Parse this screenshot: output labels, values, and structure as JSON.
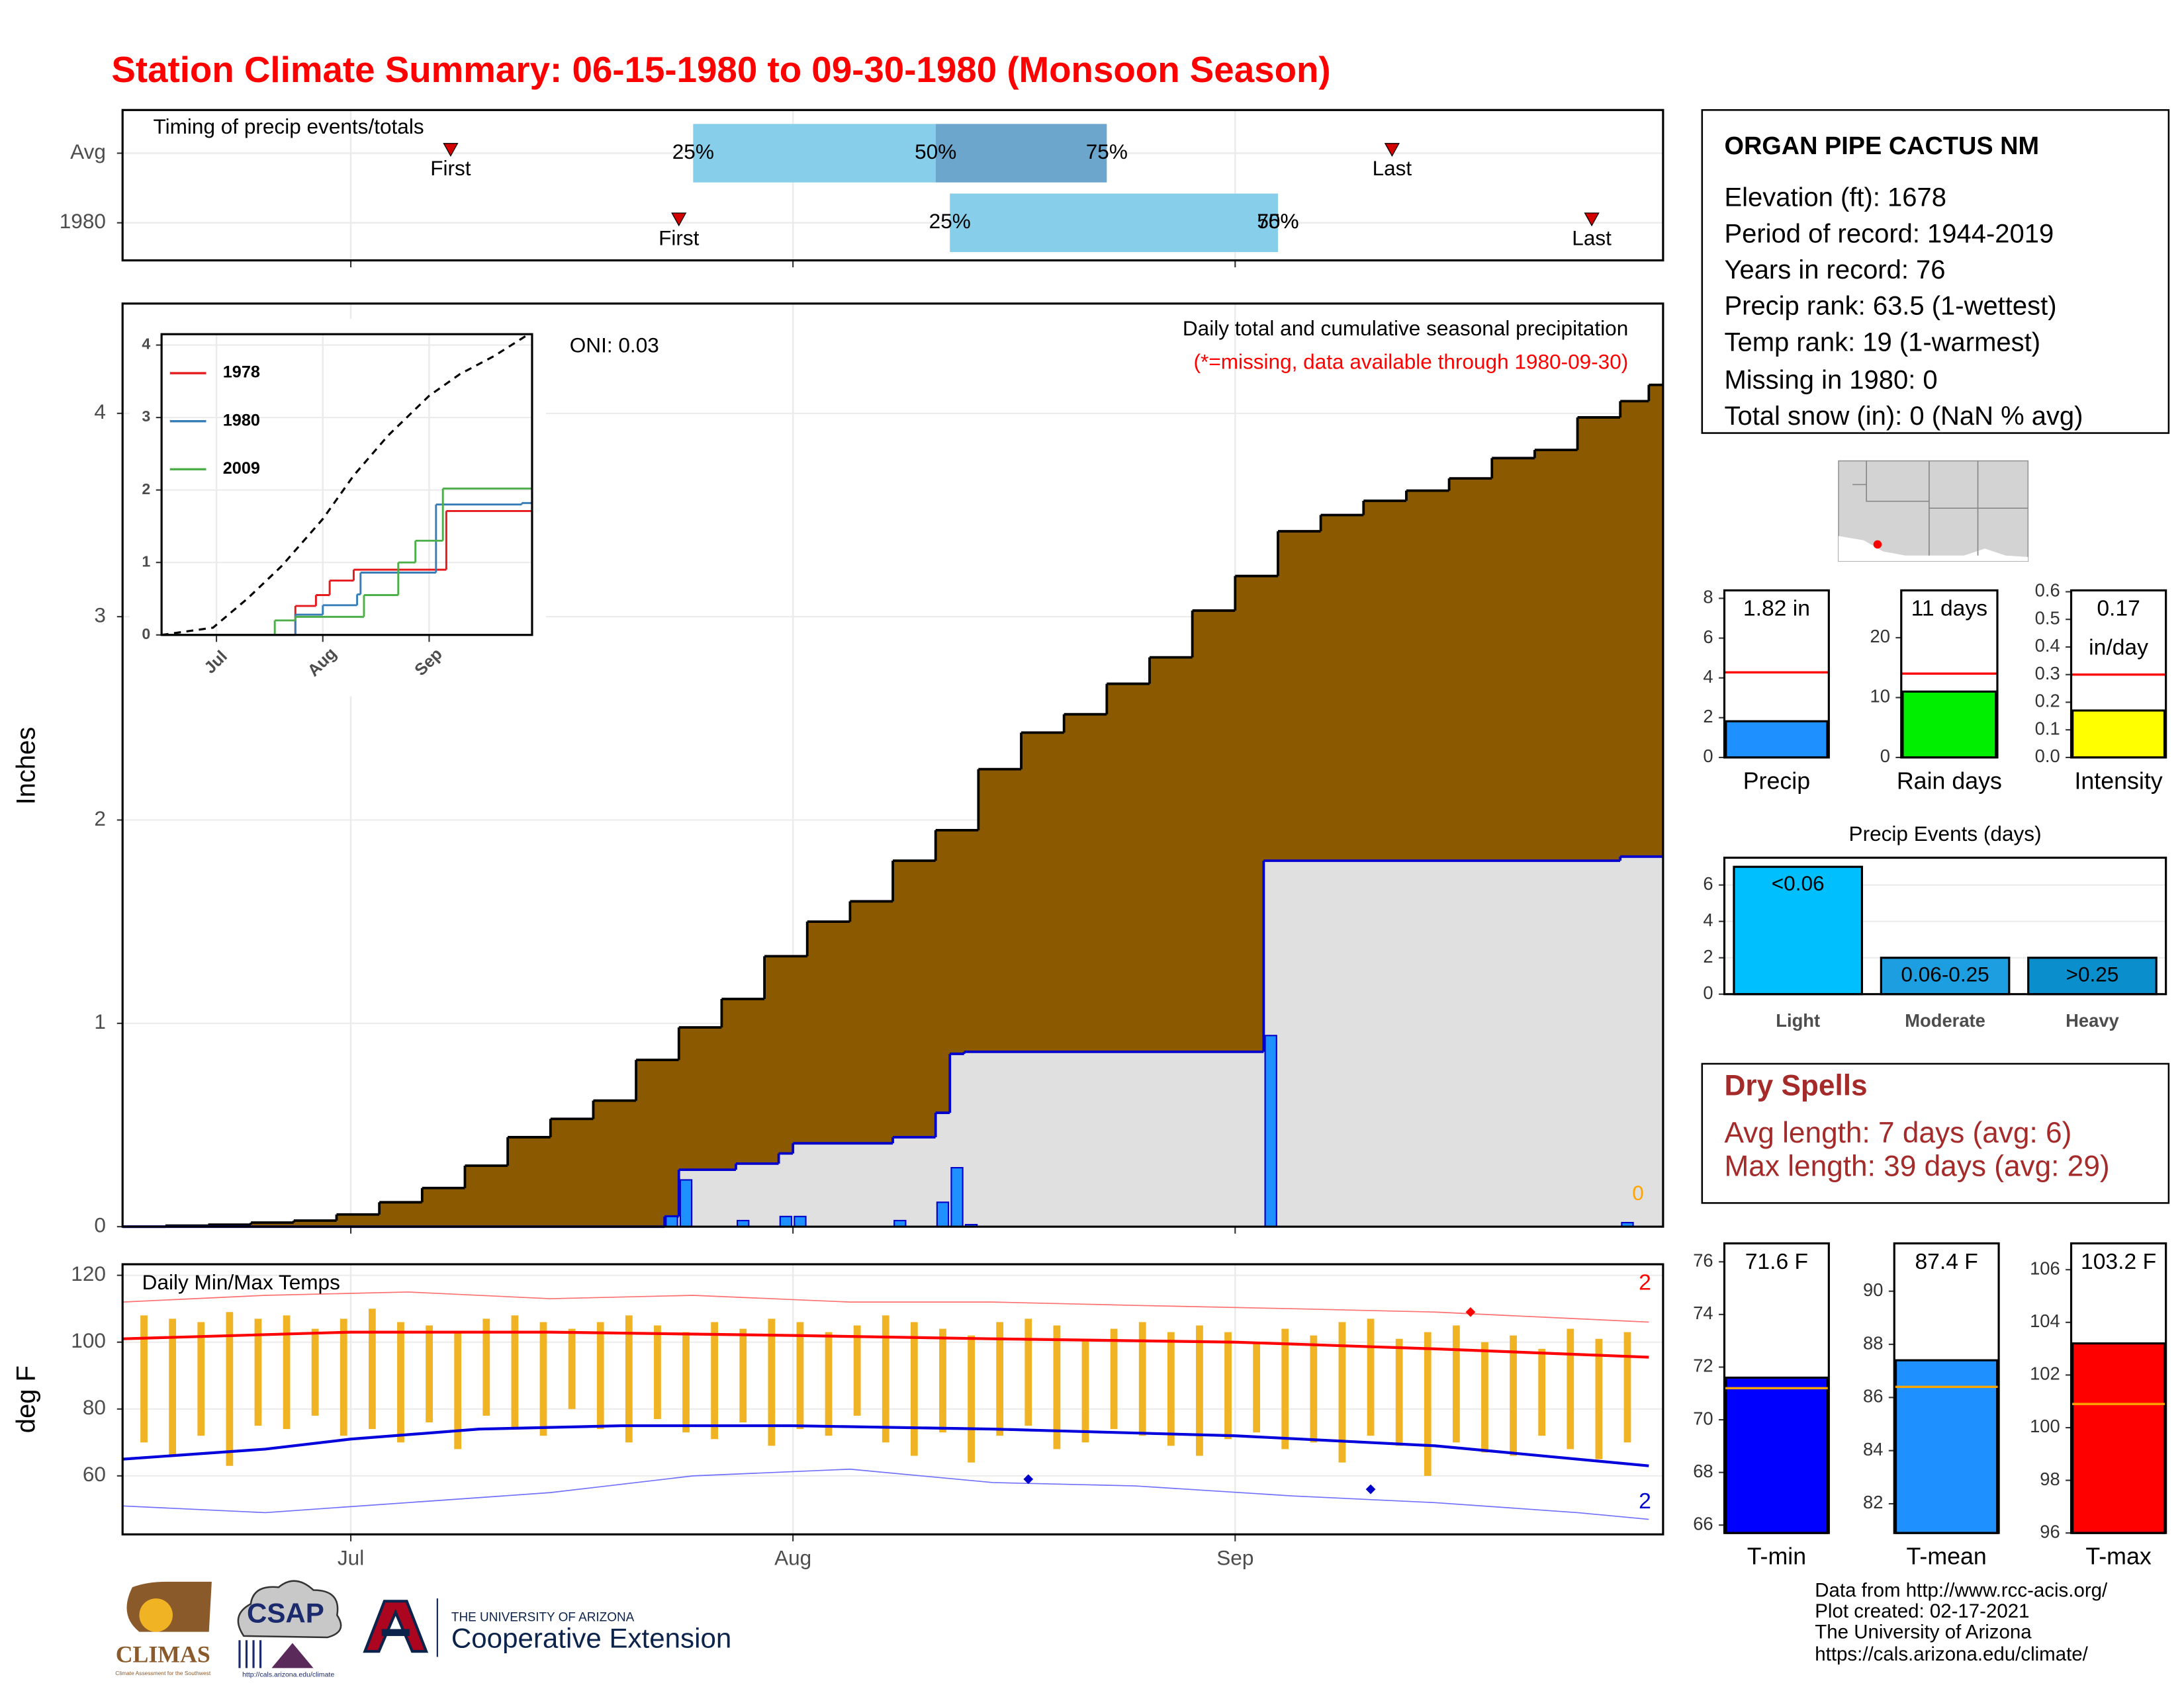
{
  "title": "Station Climate Summary: 06-15-1980 to 09-30-1980 (Monsoon Season)",
  "chart_data": [
    {
      "type": "timing",
      "title": "Timing of precip events/totals",
      "xlim": [
        "06-15",
        "10-01"
      ],
      "xticks": [
        "07-01",
        "08-01",
        "09-01"
      ],
      "grid": true,
      "labels": {
        "first": "First",
        "last": "Last",
        "q25": "25%",
        "q50": "50%",
        "q75": "75%"
      },
      "colors": {
        "q25": "#87ceeb",
        "q50": "#6ca6cd",
        "marker": "#d40000"
      },
      "rows": [
        {
          "name": "Avg",
          "first": "07-08",
          "q25": "07-25",
          "q50": "08-11",
          "q75": "08-23",
          "last": "09-12"
        },
        {
          "name": "1980",
          "first": "07-24",
          "q25": "08-12",
          "q50": "09-04",
          "q75": "09-04",
          "last": "09-26"
        }
      ]
    },
    {
      "type": "area",
      "ylabel": "Inches",
      "xlim": [
        "06-15",
        "10-01"
      ],
      "xticks": [
        "07-01",
        "08-01",
        "09-01"
      ],
      "ylim": [
        0,
        4.54
      ],
      "yticks": [
        0,
        1,
        2,
        3,
        4
      ],
      "grid": true,
      "annotations": {
        "oni": "ONI: 0.03",
        "subtitle": "Daily total and cumulative seasonal precipitation",
        "note": "(*=missing, data available through 1980-09-30)"
      },
      "missing_days": 0,
      "series": [
        {
          "kind": "step",
          "color": "#8b5a00",
          "line_color": "#000000",
          "x": [
            "06-15",
            "06-18",
            "06-21",
            "06-24",
            "06-27",
            "06-30",
            "07-03",
            "07-06",
            "07-09",
            "07-12",
            "07-15",
            "07-18",
            "07-21",
            "07-24",
            "07-27",
            "07-30",
            "08-02",
            "08-05",
            "08-08",
            "08-11",
            "08-14",
            "08-17",
            "08-20",
            "08-23",
            "08-26",
            "08-29",
            "09-01",
            "09-04",
            "09-07",
            "09-10",
            "09-13",
            "09-16",
            "09-19",
            "09-22",
            "09-25",
            "09-28",
            "09-30"
          ],
          "values": [
            0,
            0.005,
            0.01,
            0.02,
            0.03,
            0.06,
            0.12,
            0.19,
            0.3,
            0.44,
            0.53,
            0.62,
            0.82,
            0.98,
            1.12,
            1.33,
            1.5,
            1.6,
            1.8,
            1.95,
            2.25,
            2.43,
            2.52,
            2.67,
            2.8,
            3.03,
            3.2,
            3.42,
            3.5,
            3.57,
            3.62,
            3.68,
            3.78,
            3.82,
            3.98,
            4.06,
            4.14
          ]
        },
        {
          "kind": "step",
          "color": "#e0e0e0",
          "line_color": "#0000cc",
          "x": [
            "06-15",
            "07-23",
            "07-24",
            "07-28",
            "07-31",
            "08-01",
            "08-08",
            "08-11",
            "08-12",
            "08-13",
            "09-03",
            "09-28"
          ],
          "values": [
            0,
            0.05,
            0.28,
            0.31,
            0.36,
            0.41,
            0.44,
            0.56,
            0.85,
            0.86,
            1.8,
            1.82
          ]
        },
        {
          "kind": "bar",
          "color": "#1e90ff",
          "line_color": "#0000cc",
          "x": [
            "07-23",
            "07-24",
            "07-28",
            "07-31",
            "08-01",
            "08-08",
            "08-11",
            "08-12",
            "08-13",
            "09-03",
            "09-28"
          ],
          "values": [
            0.05,
            0.23,
            0.03,
            0.05,
            0.05,
            0.03,
            0.12,
            0.29,
            0.01,
            0.94,
            0.02
          ]
        }
      ]
    },
    {
      "type": "line",
      "xlim": [
        "06-15",
        "10-01"
      ],
      "xticks": [
        {
          "value": "07-01",
          "label": "Jul"
        },
        {
          "value": "08-01",
          "label": "Aug"
        },
        {
          "value": "09-01",
          "label": "Sep"
        }
      ],
      "ylim": [
        0,
        4.15
      ],
      "yticks": [
        0,
        1,
        2,
        3,
        4
      ],
      "grid": true,
      "legend": "top-left",
      "series": [
        {
          "color": "#000000",
          "dash": true,
          "step": false,
          "x": [
            "06-15",
            "06-30",
            "07-10",
            "07-20",
            "08-01",
            "08-10",
            "08-20",
            "09-01",
            "09-10",
            "09-20",
            "09-30"
          ],
          "values": [
            0,
            0.1,
            0.5,
            0.95,
            1.6,
            2.2,
            2.75,
            3.3,
            3.6,
            3.85,
            4.15
          ]
        },
        {
          "name": "1978",
          "color": "#e41a1c",
          "step": true,
          "x": [
            "06-15",
            "07-24",
            "07-30",
            "08-03",
            "08-10",
            "09-06"
          ],
          "values": [
            0,
            0.4,
            0.55,
            0.75,
            0.9,
            1.71
          ]
        },
        {
          "name": "1980",
          "color": "#377eb8",
          "step": true,
          "x": [
            "06-15",
            "07-24",
            "08-01",
            "08-11",
            "08-12",
            "09-03",
            "09-28"
          ],
          "values": [
            0,
            0.28,
            0.41,
            0.56,
            0.86,
            1.8,
            1.82
          ]
        },
        {
          "name": "2009",
          "color": "#4daf4a",
          "step": true,
          "x": [
            "06-15",
            "07-18",
            "07-24",
            "08-13",
            "08-23",
            "08-28",
            "09-05"
          ],
          "values": [
            0,
            0.2,
            0.25,
            0.55,
            1.0,
            1.3,
            2.02
          ]
        }
      ]
    },
    {
      "type": "range",
      "title": "Daily Min/Max Temps",
      "ylabel": "deg F",
      "xlim": [
        "06-15",
        "10-01"
      ],
      "xticks": [
        {
          "value": "07-01",
          "label": "Jul"
        },
        {
          "value": "08-01",
          "label": "Aug"
        },
        {
          "value": "09-01",
          "label": "Sep"
        }
      ],
      "ylim": [
        42.5,
        123.3
      ],
      "yticks": [
        60,
        80,
        100,
        120
      ],
      "grid": true,
      "bars": {
        "color": "#f0b323",
        "x": [
          "06-16",
          "06-18",
          "06-20",
          "06-22",
          "06-24",
          "06-26",
          "06-28",
          "06-30",
          "07-02",
          "07-04",
          "07-06",
          "07-08",
          "07-10",
          "07-12",
          "07-14",
          "07-16",
          "07-18",
          "07-20",
          "07-22",
          "07-24",
          "07-26",
          "07-28",
          "07-30",
          "08-01",
          "08-03",
          "08-05",
          "08-07",
          "08-09",
          "08-11",
          "08-13",
          "08-15",
          "08-17",
          "08-19",
          "08-21",
          "08-23",
          "08-25",
          "08-27",
          "08-29",
          "08-31",
          "09-02",
          "09-04",
          "09-06",
          "09-08",
          "09-10",
          "09-12",
          "09-14",
          "09-16",
          "09-18",
          "09-20",
          "09-22",
          "09-24",
          "09-26",
          "09-28"
        ],
        "low": [
          70,
          66,
          72,
          63,
          75,
          74,
          78,
          72,
          74,
          70,
          76,
          68,
          78,
          74,
          72,
          80,
          74,
          70,
          77,
          73,
          71,
          76,
          69,
          74,
          72,
          78,
          70,
          66,
          73,
          64,
          72,
          75,
          68,
          70,
          74,
          72,
          69,
          66,
          71,
          73,
          68,
          70,
          64,
          72,
          69,
          60,
          70,
          67,
          66,
          72,
          68,
          65,
          70
        ],
        "high": [
          108,
          107,
          106,
          109,
          107,
          108,
          104,
          107,
          110,
          106,
          105,
          103,
          107,
          108,
          106,
          104,
          106,
          108,
          105,
          103,
          106,
          104,
          107,
          106,
          103,
          105,
          108,
          106,
          104,
          102,
          106,
          107,
          105,
          101,
          104,
          106,
          103,
          105,
          103,
          100,
          104,
          102,
          106,
          107,
          101,
          103,
          105,
          100,
          102,
          98,
          104,
          101,
          103
        ]
      },
      "series": [
        {
          "color": "#ff0000",
          "width": 2,
          "x": [
            "06-15",
            "07-01",
            "07-15",
            "08-01",
            "08-15",
            "09-01",
            "09-15",
            "09-30"
          ],
          "values": [
            101,
            103,
            103,
            102,
            101,
            100,
            98,
            95.5
          ]
        },
        {
          "color": "#0000dd",
          "width": 2,
          "x": [
            "06-15",
            "06-25",
            "07-01",
            "07-10",
            "07-20",
            "08-01",
            "08-15",
            "09-01",
            "09-15",
            "09-30"
          ],
          "values": [
            65,
            68,
            71,
            74,
            75,
            75,
            74,
            72,
            69,
            63
          ]
        },
        {
          "color": "#ff7070",
          "width": 0.8,
          "x": [
            "06-15",
            "06-25",
            "07-05",
            "07-15",
            "07-25",
            "08-05",
            "08-15",
            "08-25",
            "09-05",
            "09-15",
            "09-25",
            "09-30"
          ],
          "values": [
            112,
            114,
            115,
            113,
            114,
            112,
            112,
            111,
            110,
            109,
            107,
            106
          ]
        },
        {
          "color": "#7070ff",
          "width": 0.8,
          "x": [
            "06-15",
            "06-25",
            "07-05",
            "07-15",
            "07-25",
            "08-05",
            "08-15",
            "08-25",
            "09-05",
            "09-15",
            "09-25",
            "09-30"
          ],
          "values": [
            51,
            49,
            52,
            55,
            60,
            62,
            58,
            57,
            54,
            52,
            49,
            47
          ]
        }
      ],
      "markers": [
        {
          "color": "#ff0000",
          "x": "09-17",
          "value": 109
        },
        {
          "color": "#0000cc",
          "x": "08-17",
          "value": 59
        },
        {
          "color": "#0000cc",
          "x": "09-10",
          "value": 56
        }
      ],
      "record_counts": [
        {
          "value": 2,
          "color": "#ff0000"
        },
        {
          "value": 2,
          "color": "#0000cc"
        }
      ]
    },
    {
      "type": "bar",
      "categories": [
        "Precip"
      ],
      "values": [
        1.82
      ],
      "value_labels": [
        "1.82 in"
      ],
      "color": "#1e90ff",
      "reference": 4.28,
      "reference_color": "#ff0000",
      "ylim": [
        0,
        8.4
      ],
      "yticks": [
        0,
        2,
        4,
        6,
        8
      ]
    },
    {
      "type": "bar",
      "categories": [
        "Rain days"
      ],
      "values": [
        11
      ],
      "value_labels": [
        "11 days"
      ],
      "color": "#00ee00",
      "reference": 14,
      "reference_color": "#ff0000",
      "ylim": [
        0,
        27.9
      ],
      "yticks": [
        0,
        10,
        20
      ]
    },
    {
      "type": "bar",
      "categories": [
        "Intensity"
      ],
      "values": [
        0.17
      ],
      "value_labels": [
        "0.17"
      ],
      "unit_label": "in/day",
      "color": "#ffff00",
      "reference": 0.3,
      "reference_color": "#ff0000",
      "ylim": [
        0,
        0.605
      ],
      "yticks": [
        {
          "value": 0,
          "label": "0.0"
        },
        0.1,
        0.2,
        0.3,
        0.4,
        0.5,
        0.6
      ]
    },
    {
      "type": "bar",
      "title": "Precip Events (days)",
      "categories": [
        "Light",
        "Moderate",
        "Heavy"
      ],
      "values": [
        7,
        2,
        2
      ],
      "bar_labels": [
        "<0.06",
        "0.06-0.25",
        ">0.25"
      ],
      "colors": [
        "#00bfff",
        "#1c9ee0",
        "#0a8fcc"
      ],
      "ylim": [
        0,
        7.5
      ],
      "yticks": [
        0,
        2,
        4,
        6
      ],
      "grid": true
    },
    {
      "type": "bar",
      "categories": [
        "T-min"
      ],
      "values": [
        71.6
      ],
      "value_labels": [
        "71.6 F"
      ],
      "color": "#0000ff",
      "reference": 71.2,
      "reference_color": "#ffa500",
      "ylim": [
        65.7,
        76.7
      ],
      "yticks": [
        66,
        68,
        70,
        72,
        74,
        76
      ]
    },
    {
      "type": "bar",
      "categories": [
        "T-mean"
      ],
      "values": [
        87.4
      ],
      "value_labels": [
        "87.4 F"
      ],
      "color": "#1e90ff",
      "reference": 86.4,
      "reference_color": "#ffa500",
      "ylim": [
        80.9,
        91.8
      ],
      "yticks": [
        82,
        84,
        86,
        88,
        90
      ]
    },
    {
      "type": "bar",
      "categories": [
        "T-max"
      ],
      "values": [
        103.2
      ],
      "value_labels": [
        "103.2 F"
      ],
      "color": "#ff0000",
      "reference": 100.9,
      "reference_color": "#ffa500",
      "ylim": [
        96,
        107
      ],
      "yticks": [
        96,
        98,
        100,
        102,
        104,
        106
      ]
    }
  ],
  "station": {
    "name": "ORGAN PIPE CACTUS NM",
    "lines": [
      "Elevation (ft): 1678",
      "Period of record: 1944-2019",
      "Years in record: 76",
      "Precip rank: 63.5 (1-wettest)",
      "Temp rank: 19 (1-warmest)",
      "Missing in 1980: 0",
      "Total snow (in): 0 (NaN % avg)"
    ]
  },
  "dry_spells": {
    "title": "Dry Spells",
    "lines": [
      "Avg length: 7 days (avg: 6)",
      "Max length: 39 days (avg: 29)"
    ]
  },
  "footer": [
    "Data from http://www.rcc-acis.org/",
    "Plot created: 02-17-2021",
    "The University of Arizona",
    "https://cals.arizona.edu/climate/"
  ],
  "logos": {
    "climas": "CLIMAS",
    "climas_tagline": "Climate Assessment for the Southwest",
    "csap": "CSAP",
    "csap_url": "http://cals.arizona.edu/climate",
    "university": "THE UNIVERSITY OF ARIZONA",
    "extension": "Cooperative Extension"
  }
}
